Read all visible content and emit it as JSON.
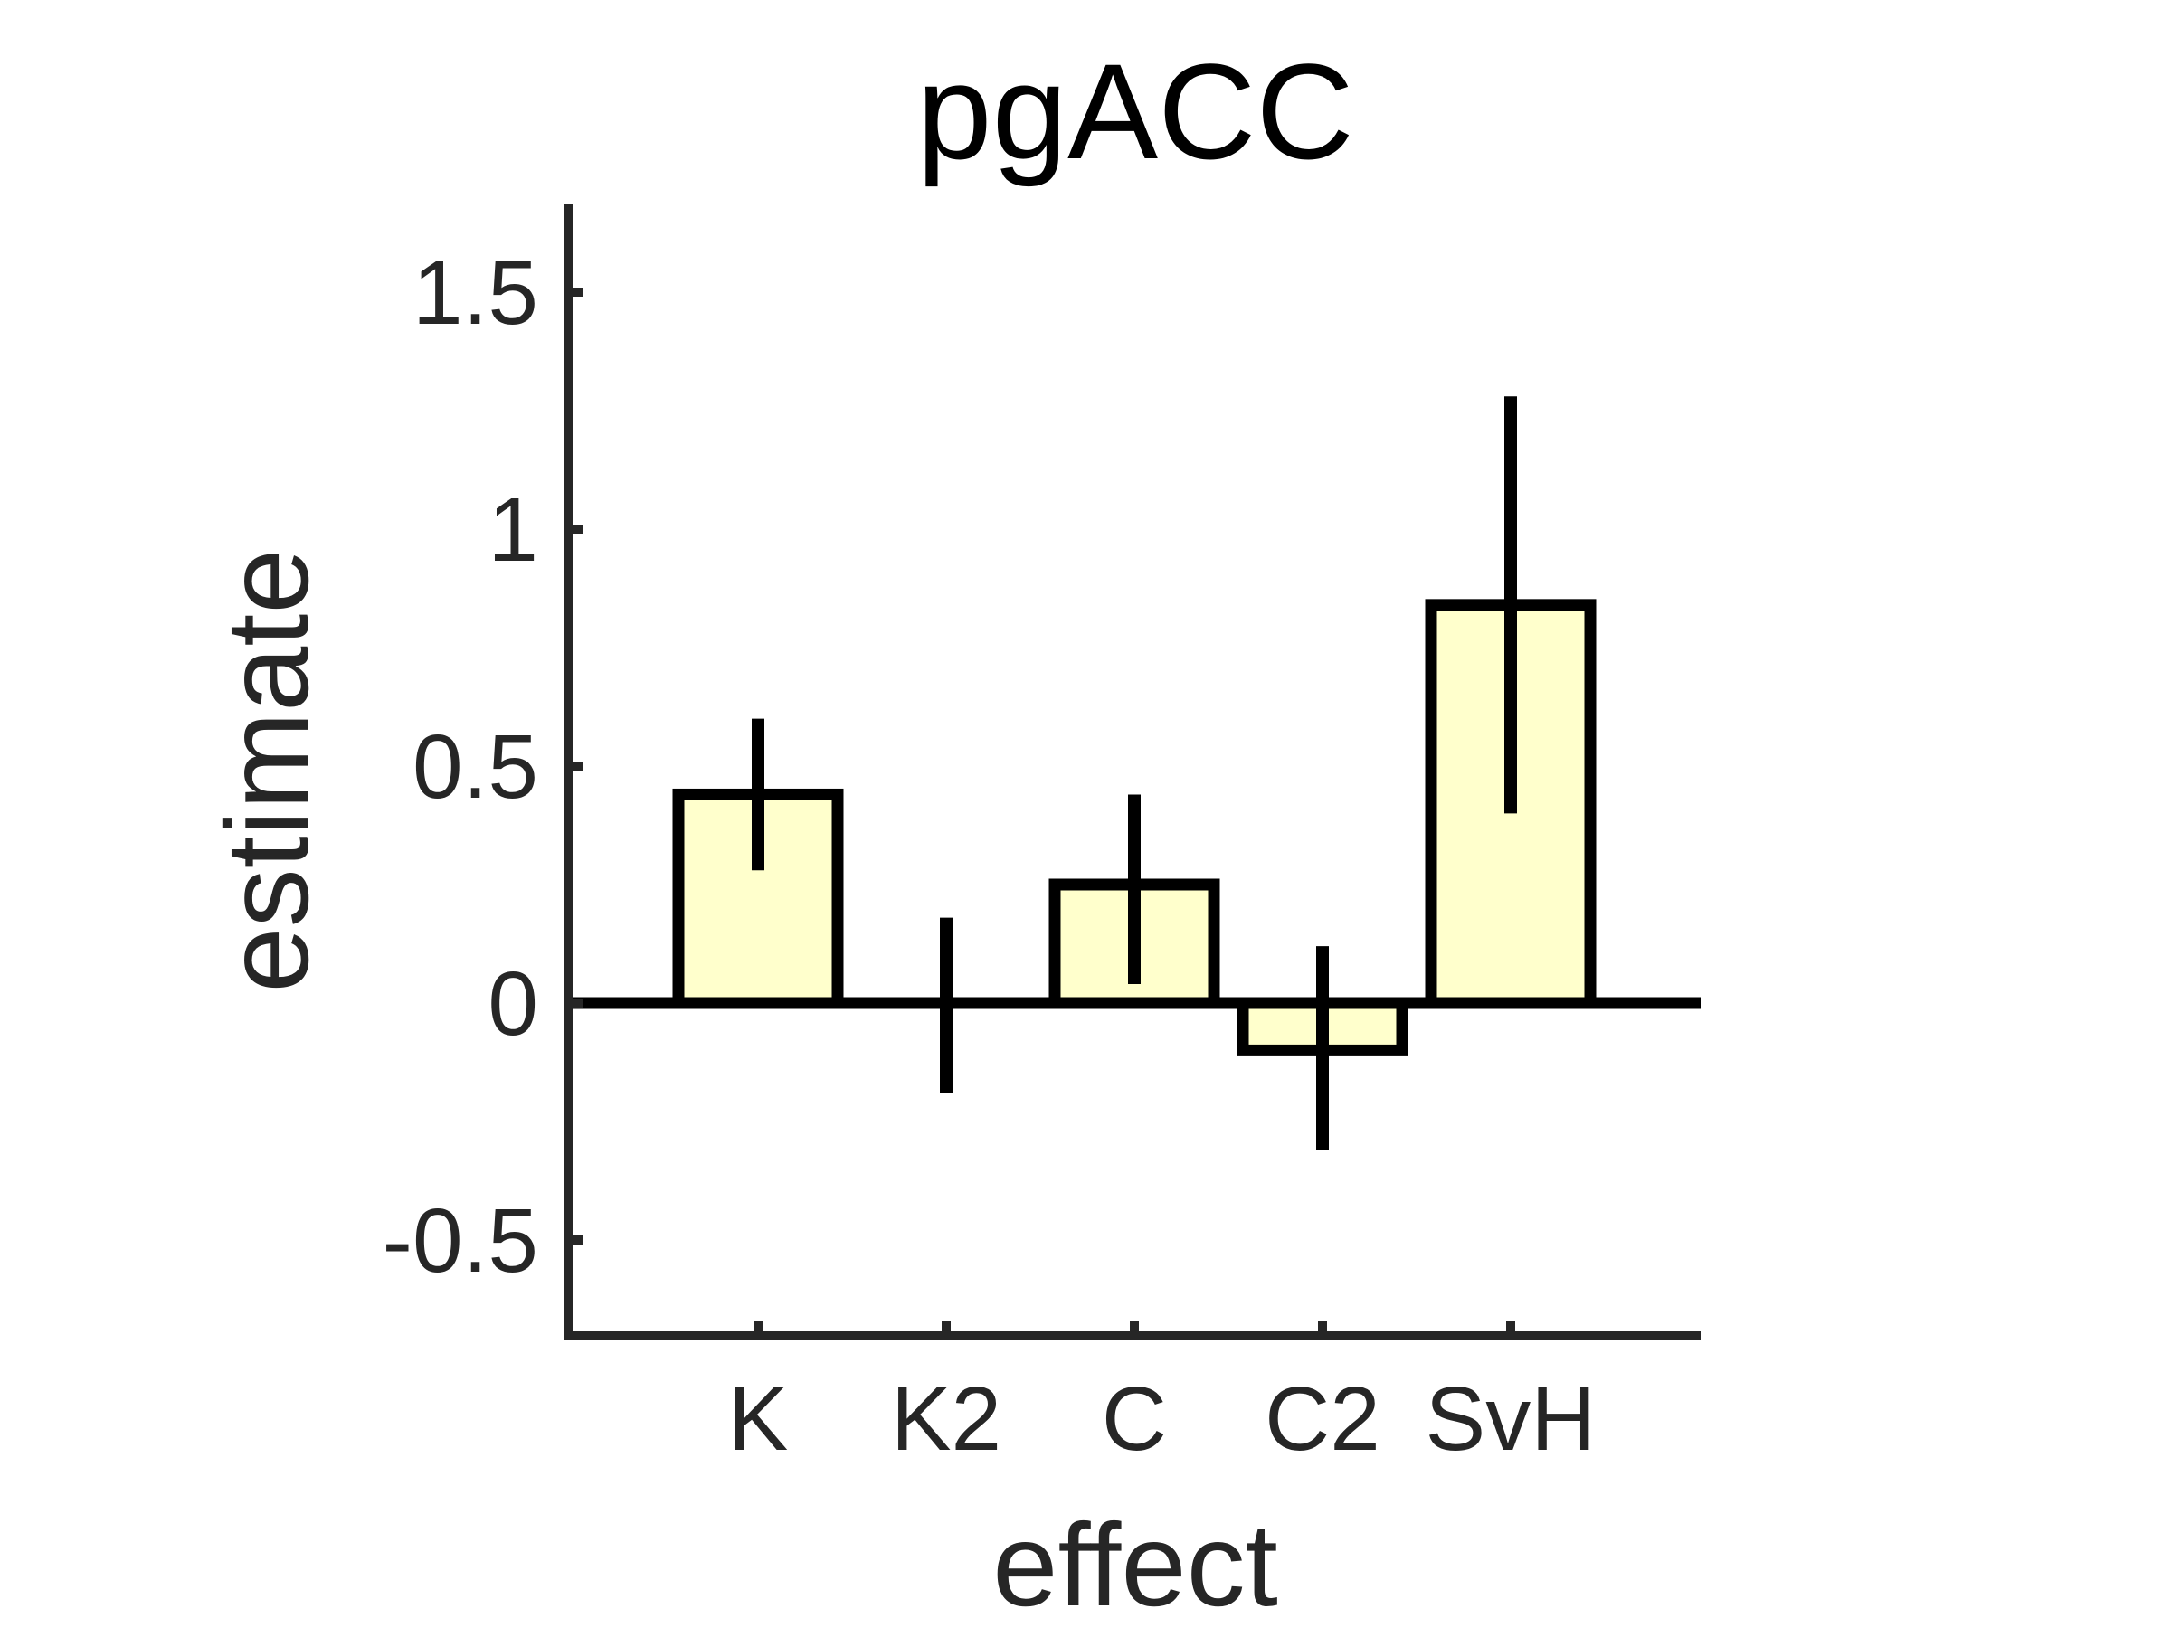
{
  "chart_data": {
    "type": "bar",
    "title": "pgACC",
    "xlabel": "effect",
    "ylabel": "estimate",
    "categories": [
      "K",
      "K2",
      "C",
      "C2",
      "SvH"
    ],
    "values": [
      0.44,
      0.0,
      0.25,
      -0.1,
      0.84
    ],
    "error_low": [
      0.28,
      -0.19,
      0.04,
      -0.31,
      0.4
    ],
    "error_high": [
      0.6,
      0.18,
      0.44,
      0.12,
      1.28
    ],
    "ylim": [
      -0.7,
      1.7
    ],
    "yticks": [
      -0.5,
      0,
      0.5,
      1,
      1.5
    ],
    "ytick_labels": [
      "-0.5",
      "0",
      "0.5",
      "1",
      "1.5"
    ],
    "bar_color": "#ffffcc",
    "edge_color": "#000000",
    "axis_color": "#262626",
    "grid": false,
    "legend": "none"
  }
}
